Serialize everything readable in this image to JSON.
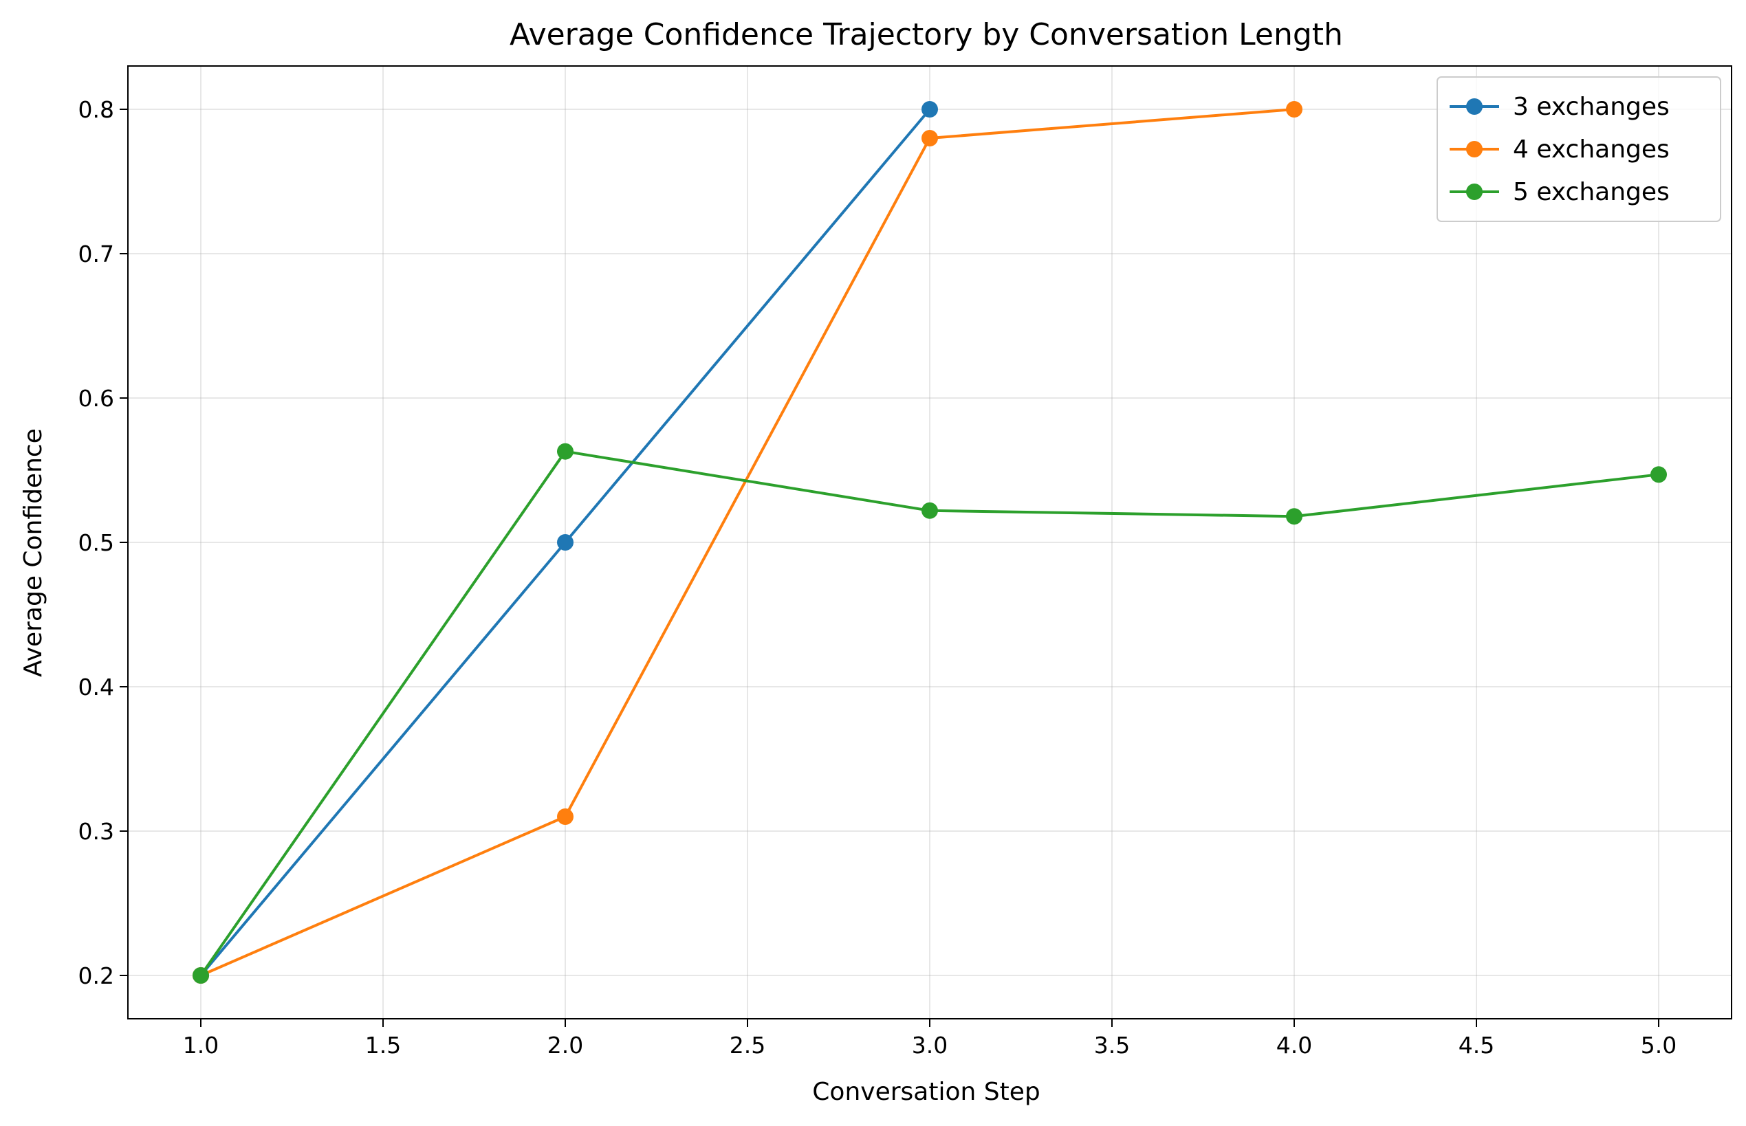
{
  "chart_data": {
    "type": "line",
    "title": "Average Confidence Trajectory by Conversation Length",
    "xlabel": "Conversation Step",
    "ylabel": "Average Confidence",
    "xlim": [
      0.8,
      5.2
    ],
    "ylim": [
      0.17,
      0.83
    ],
    "xticks": [
      "1.0",
      "1.5",
      "2.0",
      "2.5",
      "3.0",
      "3.5",
      "4.0",
      "4.5",
      "5.0"
    ],
    "yticks": [
      "0.2",
      "0.3",
      "0.4",
      "0.5",
      "0.6",
      "0.7",
      "0.8"
    ],
    "grid": true,
    "legend_position": "top-right",
    "series": [
      {
        "name": "3 exchanges",
        "color": "#1f77b4",
        "x": [
          1,
          2,
          3
        ],
        "y": [
          0.2,
          0.5,
          0.8
        ]
      },
      {
        "name": "4 exchanges",
        "color": "#ff7f0e",
        "x": [
          1,
          2,
          3,
          4
        ],
        "y": [
          0.2,
          0.31,
          0.78,
          0.8
        ]
      },
      {
        "name": "5 exchanges",
        "color": "#2ca02c",
        "x": [
          1,
          2,
          3,
          4,
          5
        ],
        "y": [
          0.2,
          0.563,
          0.522,
          0.518,
          0.547
        ]
      }
    ]
  }
}
